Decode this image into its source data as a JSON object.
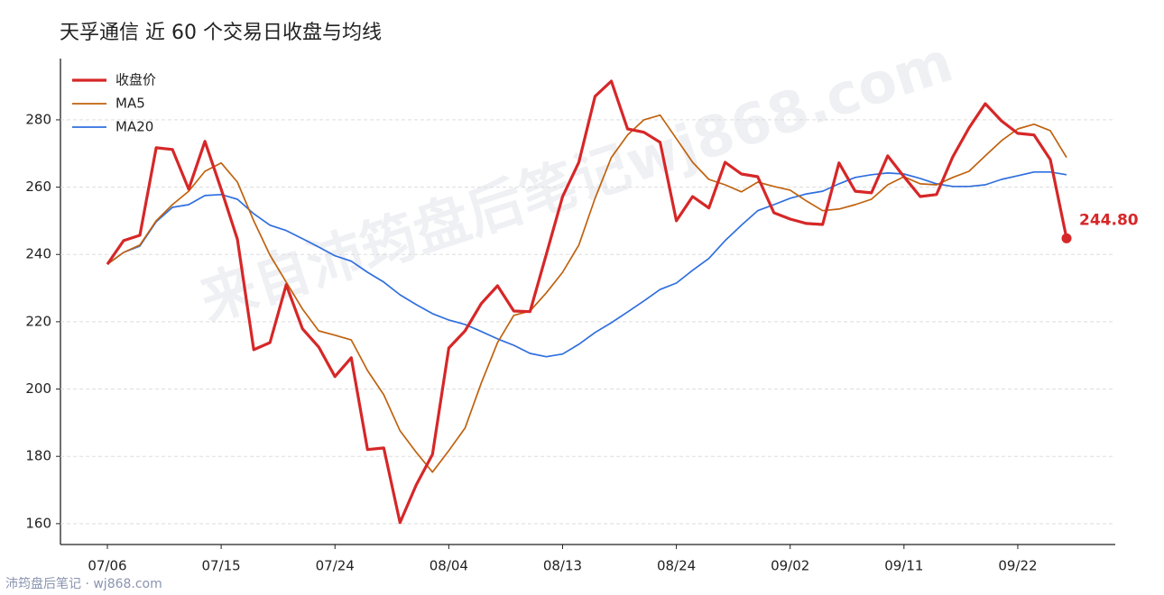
{
  "chart_data": {
    "type": "line",
    "title": "天孚通信 近 60 个交易日收盘与均线",
    "watermark": "来自沛筠盘后笔记wj868.com",
    "source": "沛筠盘后笔记 · wj868.com",
    "categories": [
      "07/06",
      null,
      null,
      null,
      null,
      null,
      null,
      "07/15",
      null,
      null,
      null,
      null,
      null,
      null,
      "07/24",
      null,
      null,
      null,
      null,
      null,
      null,
      "08/04",
      null,
      null,
      null,
      null,
      null,
      null,
      "08/13",
      null,
      null,
      null,
      null,
      null,
      null,
      "08/24",
      null,
      null,
      null,
      null,
      null,
      null,
      "09/02",
      null,
      null,
      null,
      null,
      null,
      null,
      "09/11",
      null,
      null,
      null,
      null,
      null,
      null,
      "09/22",
      null,
      null,
      null
    ],
    "series": [
      {
        "name": "收盘价",
        "color": "#d62728",
        "values": [
          237.1,
          244.1,
          245.7,
          271.7,
          271.2,
          259.4,
          273.6,
          259.4,
          244.5,
          211.7,
          213.8,
          231.0,
          217.9,
          212.5,
          203.7,
          209.3,
          182.0,
          182.5,
          160.3,
          171.5,
          180.6,
          212.2,
          217.3,
          225.4,
          230.7,
          223.2,
          223.0,
          240.1,
          257.2,
          267.4,
          287.0,
          291.5,
          277.3,
          276.3,
          273.3,
          250.0,
          257.2,
          253.8,
          267.4,
          263.9,
          263.1,
          252.4,
          250.5,
          249.2,
          248.9,
          267.2,
          258.8,
          258.3,
          269.3,
          263.1,
          257.2,
          257.8,
          269.0,
          277.6,
          284.8,
          279.7,
          276.0,
          275.5,
          268.2,
          244.8
        ],
        "value_labels": [
          null,
          null,
          null,
          null,
          null,
          null,
          null,
          null,
          null,
          null,
          null,
          null,
          null,
          null,
          null,
          null,
          null,
          null,
          null,
          null,
          null,
          null,
          null,
          null,
          null,
          null,
          null,
          null,
          null,
          null,
          null,
          null,
          null,
          null,
          null,
          null,
          null,
          null,
          null,
          null,
          null,
          null,
          null,
          null,
          null,
          null,
          null,
          null,
          null,
          null,
          null,
          null,
          null,
          null,
          null,
          null,
          null,
          null,
          null,
          "244.80"
        ]
      },
      {
        "name": "MA5",
        "color": "#c0620f",
        "values": [
          237.1,
          240.6,
          242.8,
          250.0,
          254.8,
          258.8,
          264.7,
          267.2,
          261.5,
          250.0,
          239.8,
          231.8,
          223.8,
          217.3,
          216.0,
          214.6,
          205.5,
          198.3,
          187.6,
          181.2,
          175.3,
          181.7,
          188.4,
          201.8,
          213.8,
          221.9,
          223.2,
          228.6,
          234.7,
          242.8,
          256.7,
          268.8,
          275.5,
          280.0,
          281.4,
          274.4,
          267.4,
          262.3,
          260.7,
          258.6,
          261.5,
          260.2,
          259.1,
          255.9,
          253.0,
          253.5,
          254.8,
          256.4,
          260.7,
          263.1,
          261.0,
          260.7,
          262.9,
          264.7,
          269.3,
          273.8,
          277.3,
          278.7,
          276.8,
          268.8
        ]
      },
      {
        "name": "MA20",
        "color": "#2f6fdf",
        "values": [
          237.1,
          240.6,
          242.5,
          249.7,
          254.0,
          254.8,
          257.5,
          257.8,
          256.4,
          252.1,
          248.7,
          247.1,
          244.7,
          242.2,
          239.6,
          238.0,
          234.7,
          231.8,
          228.0,
          225.1,
          222.4,
          220.5,
          219.2,
          217.1,
          214.9,
          213.0,
          210.6,
          209.6,
          210.4,
          213.3,
          216.8,
          219.7,
          222.9,
          226.2,
          229.6,
          231.5,
          235.3,
          238.8,
          244.1,
          248.7,
          253.0,
          254.8,
          256.7,
          258.0,
          258.8,
          261.0,
          262.9,
          263.7,
          264.2,
          263.9,
          262.6,
          261.0,
          260.2,
          260.2,
          260.7,
          262.3,
          263.4,
          264.5,
          264.5,
          263.7
        ]
      }
    ],
    "ylim": [
      153.8,
      298.2
    ],
    "yticks": [
      160,
      180,
      200,
      220,
      240,
      260,
      280
    ],
    "grid": true,
    "legend": "top-left"
  }
}
